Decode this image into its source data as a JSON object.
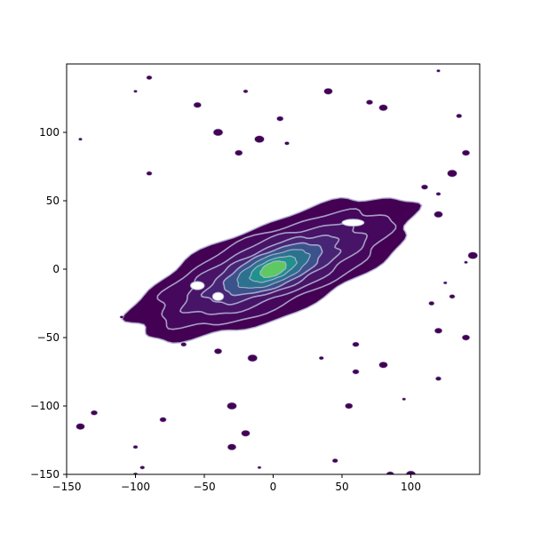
{
  "chart_data": {
    "type": "contour",
    "title": "",
    "xlabel": "",
    "ylabel": "",
    "xlim": [
      -150,
      150
    ],
    "ylim": [
      -150,
      150
    ],
    "xticks": [
      -150,
      -100,
      -50,
      0,
      50,
      100
    ],
    "yticks": [
      -150,
      -100,
      -50,
      0,
      50,
      100
    ],
    "grid": false,
    "legend": "none",
    "colormap": [
      "#440154",
      "#482475",
      "#3b528b",
      "#2c728e",
      "#21918c",
      "#28ae80",
      "#5ec962"
    ],
    "contour_line_color": "#b7b9d8",
    "distribution": {
      "center": [
        0,
        0
      ],
      "orientation_deg": 22,
      "outer_semi_axes": [
        110,
        34
      ],
      "levels": [
        {
          "level": 1,
          "semi_axes": [
            110,
            34
          ],
          "fill": "#440154"
        },
        {
          "level": 2,
          "semi_axes": [
            90,
            27
          ],
          "fill": "#46085c"
        },
        {
          "level": 3,
          "semi_axes": [
            70,
            21
          ],
          "fill": "#481467"
        },
        {
          "level": 4,
          "semi_axes": [
            52,
            16
          ],
          "fill": "#482475"
        },
        {
          "level": 5,
          "semi_axes": [
            38,
            13
          ],
          "fill": "#3b528b"
        },
        {
          "level": 6,
          "semi_axes": [
            28,
            10
          ],
          "fill": "#2c728e"
        },
        {
          "level": 7,
          "semi_axes": [
            18,
            7
          ],
          "fill": "#21918c"
        },
        {
          "level": 8,
          "semi_axes": [
            10,
            5
          ],
          "fill": "#5ec962"
        }
      ],
      "noise_blobs": [
        [
          -100,
          130
        ],
        [
          -90,
          140
        ],
        [
          -55,
          120
        ],
        [
          -40,
          100
        ],
        [
          -20,
          130
        ],
        [
          5,
          110
        ],
        [
          40,
          130
        ],
        [
          -140,
          95
        ],
        [
          -90,
          70
        ],
        [
          -25,
          85
        ],
        [
          -10,
          95
        ],
        [
          10,
          92
        ],
        [
          70,
          122
        ],
        [
          80,
          118
        ],
        [
          120,
          145
        ],
        [
          135,
          112
        ],
        [
          140,
          85
        ],
        [
          130,
          70
        ],
        [
          120,
          55
        ],
        [
          110,
          60
        ],
        [
          120,
          40
        ],
        [
          -110,
          -35
        ],
        [
          -65,
          -55
        ],
        [
          -40,
          -60
        ],
        [
          -15,
          -65
        ],
        [
          35,
          -65
        ],
        [
          60,
          -75
        ],
        [
          80,
          -70
        ],
        [
          95,
          -95
        ],
        [
          120,
          -80
        ],
        [
          55,
          -100
        ],
        [
          -30,
          -100
        ],
        [
          -100,
          -130
        ],
        [
          -80,
          -110
        ],
        [
          -30,
          -130
        ],
        [
          -10,
          -145
        ],
        [
          45,
          -140
        ],
        [
          85,
          -150
        ],
        [
          100,
          -150
        ],
        [
          -100,
          -150
        ],
        [
          -130,
          -105
        ],
        [
          -140,
          -115
        ],
        [
          125,
          -10
        ],
        [
          130,
          -20
        ],
        [
          140,
          -50
        ],
        [
          145,
          10
        ],
        [
          -95,
          -145
        ],
        [
          60,
          -55
        ],
        [
          -20,
          -120
        ],
        [
          140,
          5
        ],
        [
          115,
          -25
        ],
        [
          120,
          -45
        ]
      ]
    }
  }
}
